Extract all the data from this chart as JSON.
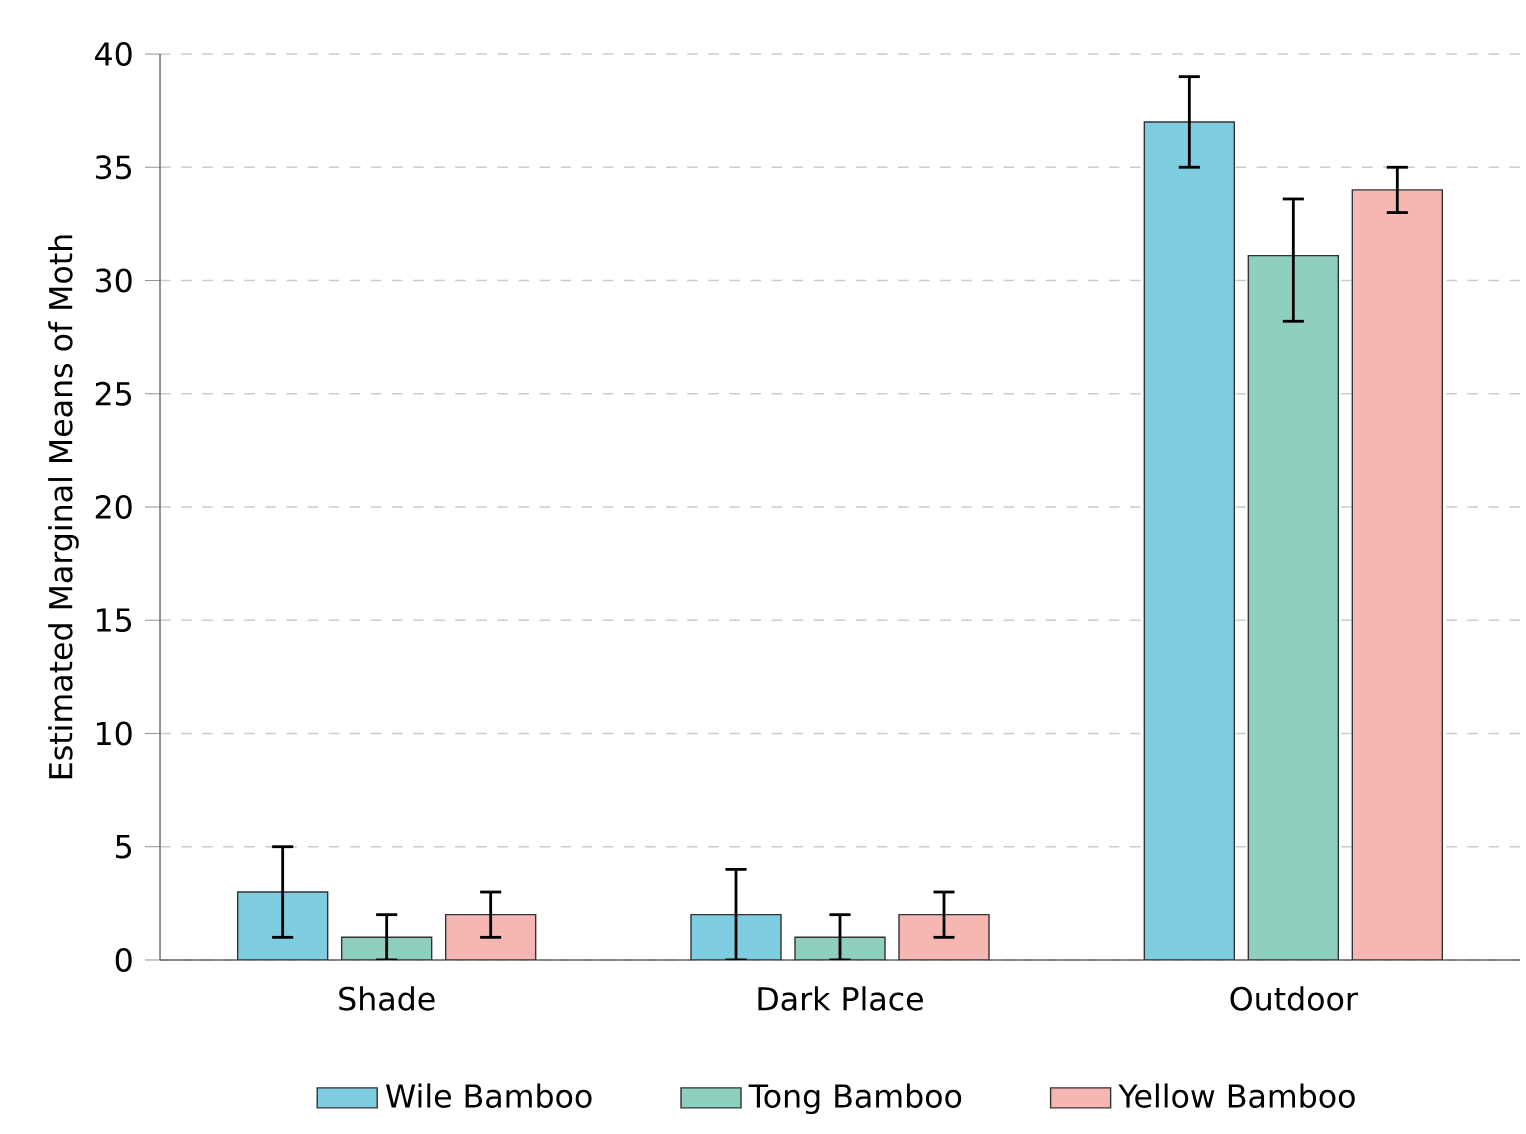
{
  "chart_data": {
    "type": "bar",
    "ylabel": "Estimated Marginal Means of Moth",
    "categories": [
      "Shade",
      "Dark Place",
      "Outdoor"
    ],
    "series": [
      {
        "name": "Wile Bamboo",
        "color": "#7ecde0",
        "values": [
          3,
          2,
          37
        ],
        "errors": [
          2,
          2,
          2
        ]
      },
      {
        "name": "Tong Bamboo",
        "color": "#8ecfc0",
        "values": [
          1,
          1,
          31.1
        ],
        "errors": [
          1,
          1,
          [
            28.2,
            33.6
          ]
        ]
      },
      {
        "name": "Yellow Bamboo",
        "color": "#f6b7b3",
        "values": [
          2,
          2,
          34
        ],
        "errors": [
          1,
          1,
          1
        ]
      }
    ],
    "ylim": [
      0,
      40
    ],
    "yticks": [
      0,
      5,
      10,
      15,
      20,
      25,
      30,
      35,
      40
    ],
    "grid": "y",
    "legend": "bottom"
  }
}
